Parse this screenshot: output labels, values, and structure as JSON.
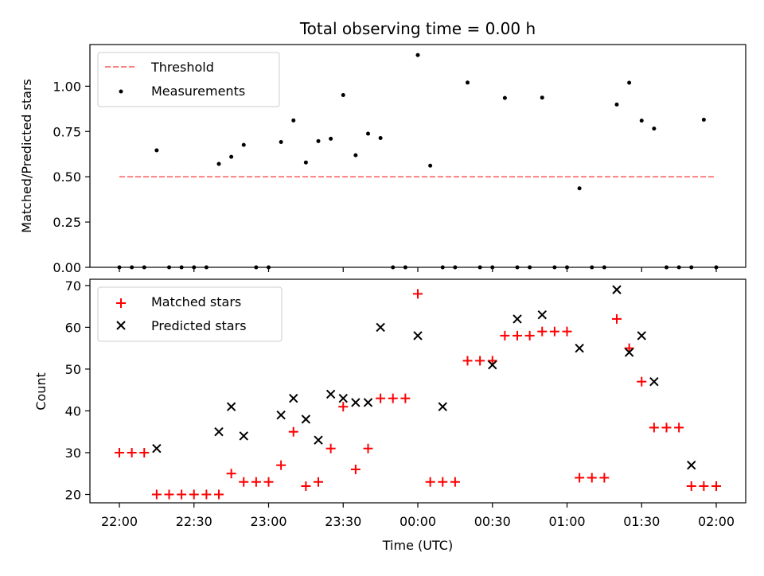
{
  "chart_data": {
    "title": "Total observing time = 0.00 h",
    "x_tick_labels": [
      "22:00",
      "22:30",
      "23:00",
      "23:30",
      "00:00",
      "00:30",
      "01:00",
      "01:30",
      "02:00"
    ],
    "xlabel": "Time (UTC)",
    "top": {
      "type": "scatter",
      "ylabel": "Matched/Predicted stars",
      "ylim": [
        0,
        1.23
      ],
      "y_ticks": [
        "0.00",
        "0.25",
        "0.50",
        "0.75",
        "1.00"
      ],
      "y_tick_values": [
        0,
        0.25,
        0.5,
        0.75,
        1.0
      ],
      "threshold": {
        "name": "Threshold",
        "value": 0.5,
        "x_range": [
          0,
          120
        ],
        "color": "#ff8080"
      },
      "series": [
        {
          "name": "Measurements",
          "color": "#000000",
          "x": [
            0,
            2.5,
            5,
            7.5,
            10,
            12.5,
            15,
            17.5,
            20,
            22.5,
            25,
            27.5,
            30,
            32.5,
            35,
            37.5,
            40,
            42.5,
            45,
            47.5,
            50,
            52.5,
            55,
            57.5,
            60,
            62.5,
            65,
            67.5,
            70,
            72.5,
            75,
            77.5,
            80,
            82.5,
            85,
            87.5,
            90,
            92.5,
            95,
            97.5,
            100,
            102.5,
            105,
            107.5,
            110,
            112.5,
            115,
            117.5,
            120
          ],
          "y": [
            0,
            0,
            0,
            0.646,
            0,
            0,
            0,
            0,
            0.571,
            0.61,
            0.676,
            0,
            0,
            0.692,
            0.811,
            0.579,
            0.697,
            0.71,
            0.951,
            0.619,
            0.738,
            0.714,
            0,
            0,
            1.172,
            0.561,
            0,
            0,
            1.02,
            0,
            0,
            0.935,
            0,
            0,
            0.937,
            0,
            0,
            0.436,
            0,
            0,
            0.899,
            1.019,
            0.81,
            0.766,
            0,
            0,
            0,
            0.815,
            0
          ]
        }
      ]
    },
    "bottom": {
      "type": "scatter",
      "ylabel": "Count",
      "ylim": [
        18,
        71.5
      ],
      "y_ticks": [
        "20",
        "30",
        "40",
        "50",
        "60",
        "70"
      ],
      "y_tick_values": [
        20,
        30,
        40,
        50,
        60,
        70
      ],
      "series": [
        {
          "name": "Matched stars",
          "marker": "plus",
          "color": "#ff0000",
          "x": [
            0,
            2.5,
            5,
            7.5,
            10,
            12.5,
            15,
            17.5,
            20,
            22.5,
            25,
            27.5,
            30,
            32.5,
            35,
            37.5,
            40,
            42.5,
            45,
            47.5,
            50,
            52.5,
            55,
            57.5,
            60,
            62.5,
            65,
            67.5,
            70,
            72.5,
            75,
            77.5,
            80,
            82.5,
            85,
            87.5,
            90,
            92.5,
            95,
            97.5,
            100,
            102.5,
            105,
            107.5,
            110,
            112.5,
            115,
            117.5,
            120
          ],
          "y": [
            30,
            30,
            30,
            20,
            20,
            20,
            20,
            20,
            20,
            25,
            23,
            23,
            23,
            27,
            35,
            22,
            23,
            31,
            41,
            26,
            31,
            43,
            43,
            43,
            68,
            23,
            23,
            23,
            52,
            52,
            52,
            58,
            58,
            58,
            59,
            59,
            59,
            24,
            24,
            24,
            62,
            55,
            47,
            36,
            36,
            36,
            22,
            22,
            22
          ]
        },
        {
          "name": "Predicted stars",
          "marker": "x",
          "color": "#000000",
          "x": [
            7.5,
            20,
            22.5,
            25,
            32.5,
            35,
            37.5,
            40,
            42.5,
            45,
            47.5,
            50,
            52.5,
            60,
            65,
            75,
            80,
            85,
            92.5,
            100,
            102.5,
            105,
            107.5,
            115
          ],
          "y": [
            31,
            35,
            41,
            34,
            39,
            43,
            38,
            33,
            44,
            43,
            42,
            42,
            60,
            58,
            41,
            51,
            62,
            63,
            55,
            69,
            54,
            58,
            47,
            27
          ]
        }
      ]
    }
  }
}
